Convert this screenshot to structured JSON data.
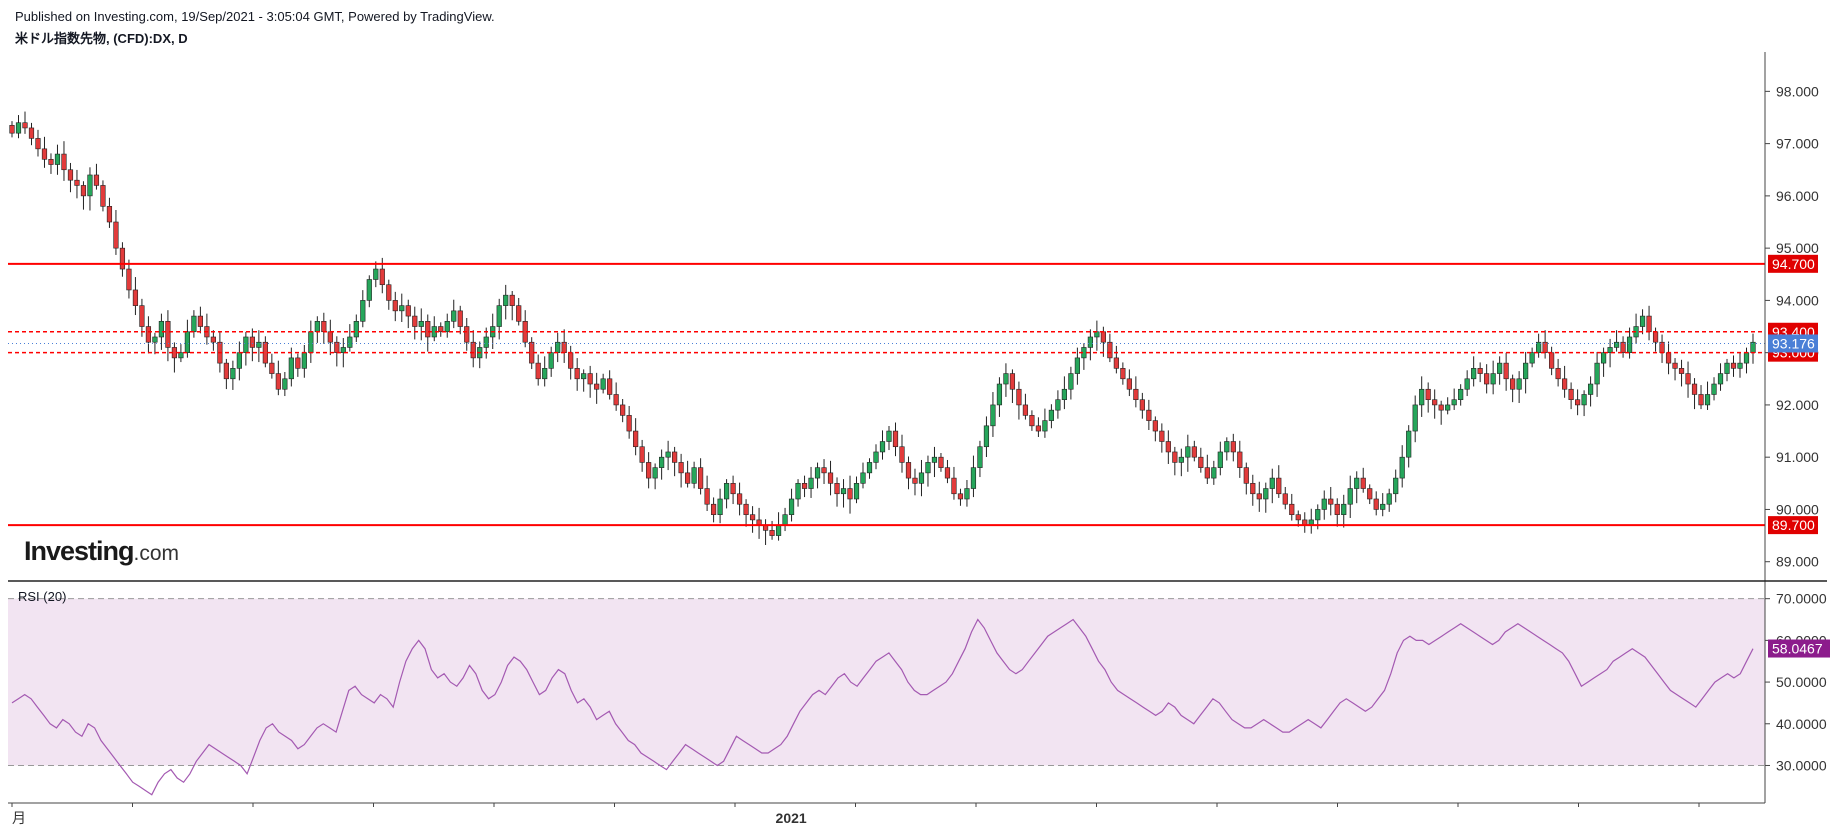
{
  "header": {
    "published": "Published on Investing.com, 19/Sep/2021 - 3:05:04 GMT, Powered by TradingView.",
    "symbol": "米ドル指数先物, (CFD):DX, D"
  },
  "logo": {
    "brand": "Investing",
    "suffix": ".com"
  },
  "colors": {
    "up": "#26a65b",
    "down": "#e23b3b",
    "level_line": "#ff0000",
    "current_price_tag": "#4a7fd6",
    "rsi_line": "#a45ab2",
    "rsi_band": "#f2e4f2",
    "rsi_tag": "#8c1c8c"
  },
  "chart_data": [
    {
      "type": "candlestick",
      "symbol": "米ドル指数先物, (CFD):DX, D",
      "y_ticks": [
        "89.000",
        "90.000",
        "91.000",
        "92.000",
        "93.000",
        "94.000",
        "95.000",
        "96.000",
        "97.000",
        "98.000"
      ],
      "ylim": [
        88.65,
        98.6
      ],
      "x_labels": [
        {
          "label": "月",
          "index": 0
        },
        {
          "label": "2021",
          "index": 120
        }
      ],
      "levels": [
        {
          "value": 94.7,
          "label": "94.700",
          "style": "solid"
        },
        {
          "value": 93.4,
          "label": "93.400",
          "style": "dashed"
        },
        {
          "value": 93.0,
          "label": "93.000",
          "style": "dashed"
        },
        {
          "value": 89.7,
          "label": "89.700",
          "style": "solid"
        }
      ],
      "current_price": {
        "value": 93.176,
        "label": "93.176"
      },
      "closes": [
        97.2,
        97.4,
        97.3,
        97.1,
        96.9,
        96.7,
        96.6,
        96.8,
        96.5,
        96.3,
        96.2,
        96.0,
        96.4,
        96.2,
        95.8,
        95.5,
        95.0,
        94.6,
        94.2,
        93.9,
        93.5,
        93.2,
        93.3,
        93.6,
        93.1,
        92.9,
        93.0,
        93.4,
        93.7,
        93.5,
        93.3,
        93.2,
        92.8,
        92.5,
        92.7,
        93.0,
        93.3,
        93.1,
        93.2,
        92.8,
        92.6,
        92.3,
        92.5,
        92.9,
        92.7,
        93.0,
        93.4,
        93.6,
        93.4,
        93.2,
        93.0,
        93.1,
        93.3,
        93.6,
        94.0,
        94.4,
        94.6,
        94.3,
        94.0,
        93.8,
        93.9,
        93.7,
        93.5,
        93.6,
        93.3,
        93.5,
        93.4,
        93.6,
        93.8,
        93.5,
        93.2,
        92.9,
        93.1,
        93.3,
        93.5,
        93.9,
        94.1,
        93.9,
        93.6,
        93.2,
        92.8,
        92.5,
        92.7,
        93.0,
        93.2,
        93.0,
        92.7,
        92.5,
        92.6,
        92.4,
        92.3,
        92.5,
        92.2,
        92.0,
        91.8,
        91.5,
        91.2,
        90.9,
        90.6,
        90.8,
        91.0,
        91.1,
        90.9,
        90.7,
        90.5,
        90.8,
        90.4,
        90.1,
        89.9,
        90.2,
        90.5,
        90.3,
        90.1,
        89.9,
        89.8,
        89.7,
        89.6,
        89.5,
        89.7,
        89.9,
        90.2,
        90.5,
        90.4,
        90.6,
        90.8,
        90.7,
        90.5,
        90.3,
        90.4,
        90.2,
        90.5,
        90.7,
        90.9,
        91.1,
        91.3,
        91.5,
        91.2,
        90.9,
        90.6,
        90.5,
        90.7,
        90.9,
        91.0,
        90.8,
        90.6,
        90.3,
        90.2,
        90.4,
        90.8,
        91.2,
        91.6,
        92.0,
        92.4,
        92.6,
        92.3,
        92.0,
        91.8,
        91.6,
        91.5,
        91.7,
        91.9,
        92.1,
        92.3,
        92.6,
        92.9,
        93.1,
        93.3,
        93.4,
        93.2,
        92.9,
        92.7,
        92.5,
        92.3,
        92.1,
        91.9,
        91.7,
        91.5,
        91.3,
        91.1,
        90.9,
        91.0,
        91.2,
        91.0,
        90.8,
        90.6,
        90.8,
        91.1,
        91.3,
        91.1,
        90.8,
        90.5,
        90.3,
        90.2,
        90.4,
        90.6,
        90.3,
        90.1,
        89.9,
        89.8,
        89.7,
        89.8,
        90.0,
        90.2,
        90.1,
        89.9,
        90.1,
        90.4,
        90.6,
        90.4,
        90.2,
        90.0,
        90.1,
        90.3,
        90.6,
        91.0,
        91.5,
        92.0,
        92.3,
        92.1,
        92.0,
        91.9,
        92.0,
        92.1,
        92.3,
        92.5,
        92.7,
        92.6,
        92.4,
        92.6,
        92.8,
        92.5,
        92.3,
        92.5,
        92.8,
        93.0,
        93.2,
        93.0,
        92.7,
        92.5,
        92.3,
        92.1,
        92.0,
        92.2,
        92.4,
        92.8,
        93.0,
        93.1,
        93.2,
        93.0,
        93.3,
        93.5,
        93.7,
        93.4,
        93.2,
        93.0,
        92.8,
        92.7,
        92.6,
        92.4,
        92.2,
        92.0,
        92.2,
        92.4,
        92.6,
        92.8,
        92.7,
        92.8,
        93.0,
        93.2
      ]
    },
    {
      "type": "line",
      "title": "RSI (20)",
      "y_ticks": [
        "30.0000",
        "40.0000",
        "50.0000",
        "60.0000",
        "70.0000"
      ],
      "ylim": [
        21.0,
        74.0
      ],
      "band": [
        30,
        70
      ],
      "current": {
        "value": 58.0467,
        "label": "58.0467"
      },
      "values": [
        45,
        46,
        47,
        46,
        44,
        42,
        40,
        39,
        41,
        40,
        38,
        37,
        40,
        39,
        36,
        34,
        32,
        30,
        28,
        26,
        25,
        24,
        23,
        26,
        28,
        29,
        27,
        26,
        28,
        31,
        33,
        35,
        34,
        33,
        32,
        31,
        30,
        28,
        32,
        36,
        39,
        40,
        38,
        37,
        36,
        34,
        35,
        37,
        39,
        40,
        39,
        38,
        43,
        48,
        49,
        47,
        46,
        45,
        47,
        46,
        44,
        50,
        55,
        58,
        60,
        58,
        53,
        51,
        52,
        50,
        49,
        51,
        54,
        52,
        48,
        46,
        47,
        50,
        54,
        56,
        55,
        53,
        50,
        47,
        48,
        51,
        53,
        52,
        48,
        45,
        46,
        44,
        41,
        42,
        43,
        40,
        38,
        36,
        35,
        33,
        32,
        31,
        30,
        29,
        31,
        33,
        35,
        34,
        33,
        32,
        31,
        30,
        31,
        34,
        37,
        36,
        35,
        34,
        33,
        33,
        34,
        35,
        37,
        40,
        43,
        45,
        47,
        48,
        47,
        49,
        51,
        52,
        50,
        49,
        51,
        53,
        55,
        56,
        57,
        55,
        53,
        50,
        48,
        47,
        47,
        48,
        49,
        50,
        52,
        55,
        58,
        62,
        65,
        63,
        60,
        57,
        55,
        53,
        52,
        53,
        55,
        57,
        59,
        61,
        62,
        63,
        64,
        65,
        63,
        61,
        58,
        55,
        53,
        50,
        48,
        47,
        46,
        45,
        44,
        43,
        42,
        43,
        45,
        44,
        42,
        41,
        40,
        42,
        44,
        46,
        45,
        43,
        41,
        40,
        39,
        39,
        40,
        41,
        40,
        39,
        38,
        38,
        39,
        40,
        41,
        40,
        39,
        41,
        43,
        45,
        46,
        45,
        44,
        43,
        44,
        46,
        48,
        52,
        57,
        60,
        61,
        60,
        60,
        59,
        60,
        61,
        62,
        63,
        64,
        63,
        62,
        61,
        60,
        59,
        60,
        62,
        63,
        64,
        63,
        62,
        61,
        60,
        59,
        58,
        57,
        55,
        52,
        49,
        50,
        51,
        52,
        53,
        55,
        56,
        57,
        58,
        57,
        56,
        54,
        52,
        50,
        48,
        47,
        46,
        45,
        44,
        46,
        48,
        50,
        51,
        52,
        51,
        52,
        55,
        58
      ]
    }
  ]
}
